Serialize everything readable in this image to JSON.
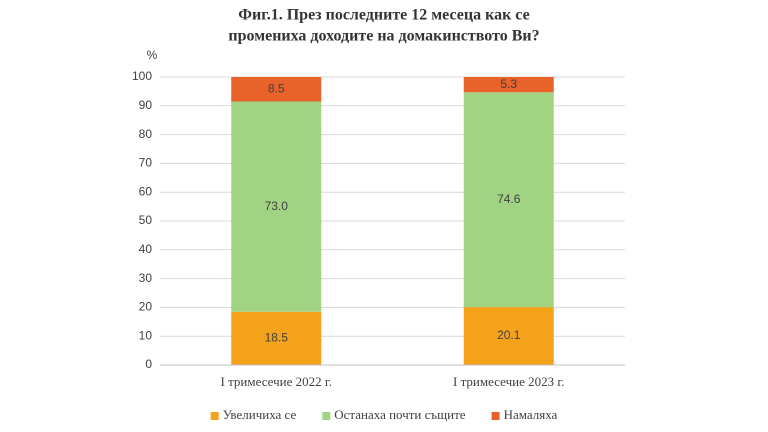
{
  "chart_data": {
    "type": "stacked_bar",
    "title": [
      "Фиг.1. През последните 12 месеца как се",
      "промениха доходите на домакинството Ви?"
    ],
    "ylabel": "%",
    "categories": [
      "I тримесечие 2022 г.",
      "I тримесечие 2023 г."
    ],
    "series": [
      {
        "name": "Увеличиха се",
        "color": "#f5a21b",
        "values": [
          18.5,
          20.1
        ],
        "value_labels": [
          "18.5",
          "20.1"
        ]
      },
      {
        "name": "Останаха почти същите",
        "color": "#a0d483",
        "values": [
          73.0,
          74.6
        ],
        "value_labels": [
          "73.0",
          "74.6"
        ]
      },
      {
        "name": "Намаляха",
        "color": "#e8622a",
        "values": [
          8.5,
          5.3
        ],
        "value_labels": [
          "8.5",
          "5.3"
        ]
      }
    ],
    "ylim": [
      0,
      100
    ],
    "yticks": [
      0,
      10,
      20,
      30,
      40,
      50,
      60,
      70,
      80,
      90,
      100
    ],
    "grid": true,
    "legend": "bottom"
  }
}
